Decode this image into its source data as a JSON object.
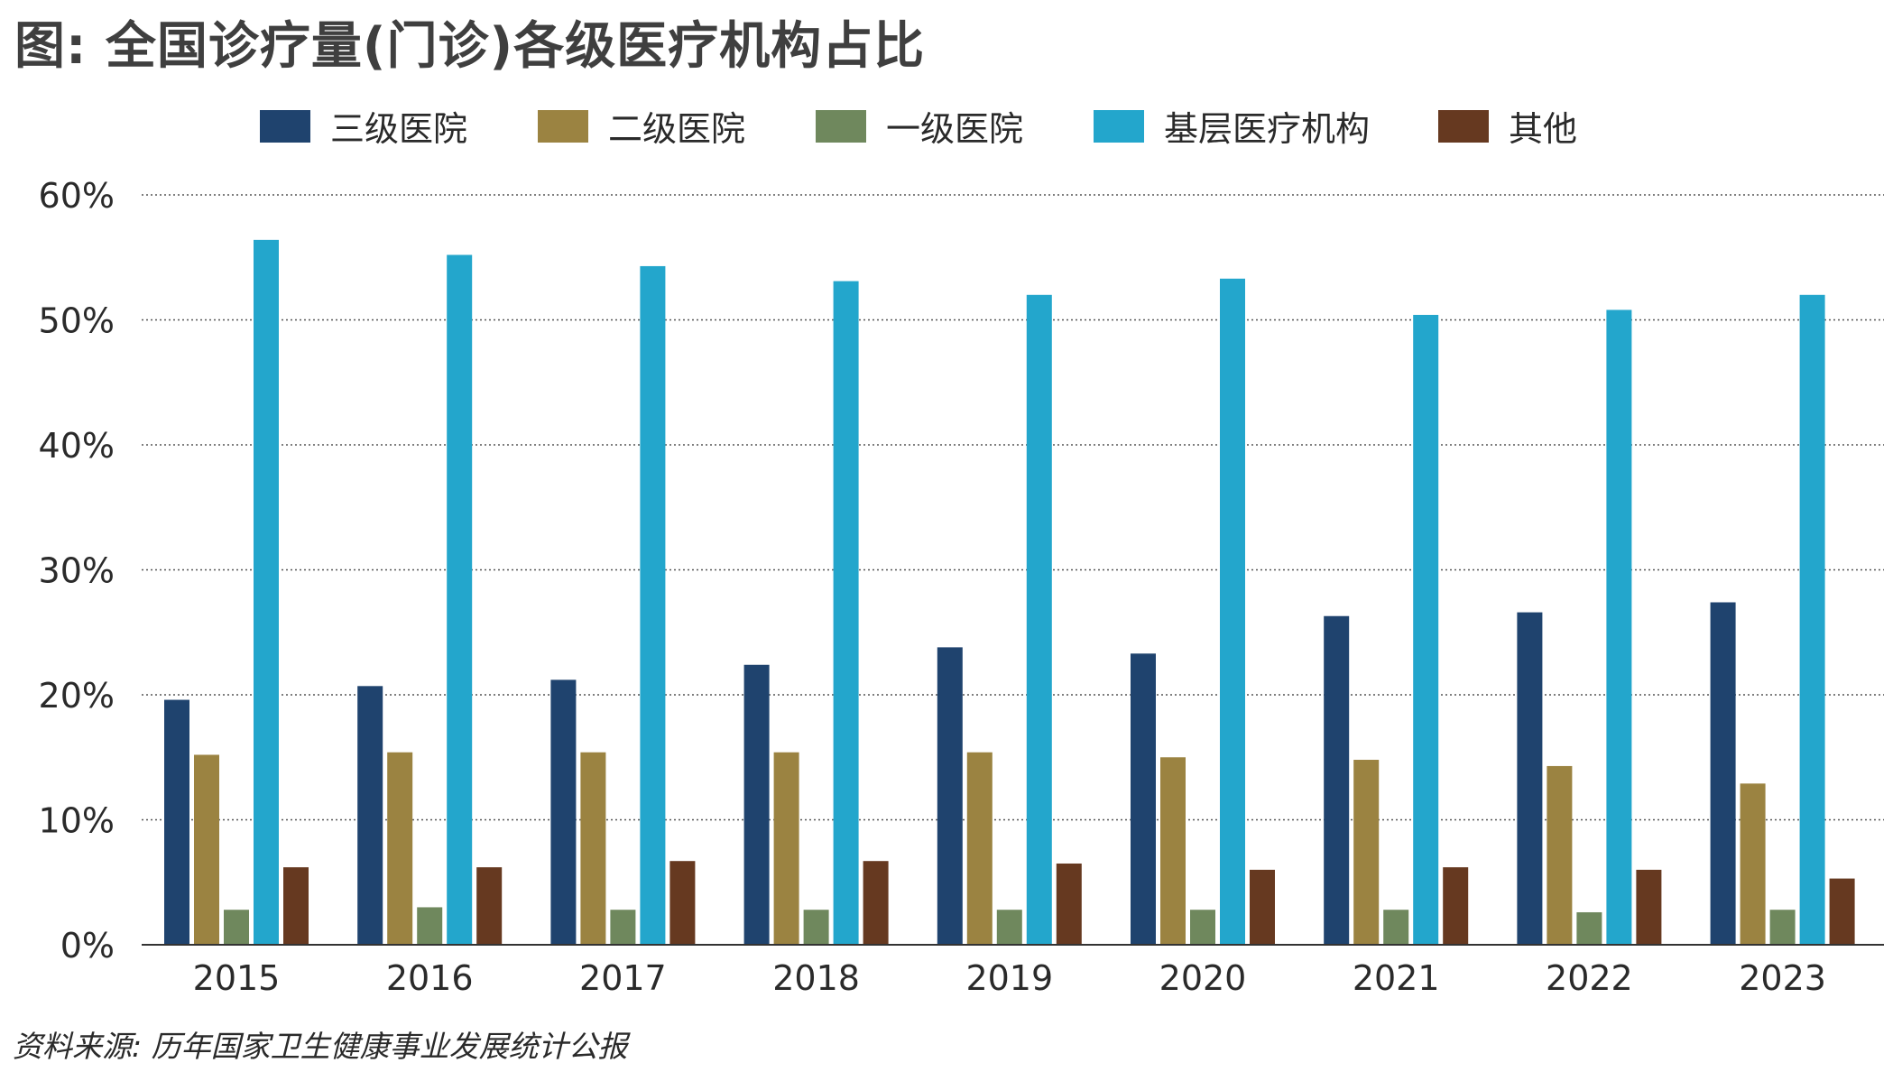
{
  "title": "图: 全国诊疗量(门诊)各级医疗机构占比",
  "source": "资料来源: 历年国家卫生健康事业发展统计公报",
  "chart_data": {
    "type": "bar",
    "title": "图: 全国诊疗量(门诊)各级医疗机构占比",
    "categories": [
      "2015",
      "2016",
      "2017",
      "2018",
      "2019",
      "2020",
      "2021",
      "2022",
      "2023"
    ],
    "ylim": [
      0,
      60
    ],
    "yticks": [
      0,
      10,
      20,
      30,
      40,
      50,
      60
    ],
    "ytick_labels": [
      "0%",
      "10%",
      "20%",
      "30%",
      "40%",
      "50%",
      "60%"
    ],
    "grid": "horizontal dotted",
    "legend_position": "top",
    "series": [
      {
        "name": "三级医院",
        "color": "#1f436e",
        "values": [
          19.6,
          20.7,
          21.2,
          22.4,
          23.8,
          23.3,
          26.3,
          26.6,
          27.4
        ]
      },
      {
        "name": "二级医院",
        "color": "#9b8341",
        "values": [
          15.2,
          15.4,
          15.4,
          15.4,
          15.4,
          15.0,
          14.8,
          14.3,
          12.9
        ]
      },
      {
        "name": "一级医院",
        "color": "#6f885d",
        "values": [
          2.8,
          3.0,
          2.8,
          2.8,
          2.8,
          2.8,
          2.8,
          2.6,
          2.8
        ]
      },
      {
        "name": "基层医疗机构",
        "color": "#23a6cc",
        "values": [
          56.4,
          55.2,
          54.3,
          53.1,
          52.0,
          53.3,
          50.4,
          50.8,
          52.0
        ]
      },
      {
        "name": "其他",
        "color": "#663920",
        "values": [
          6.2,
          6.2,
          6.7,
          6.7,
          6.5,
          6.0,
          6.2,
          6.0,
          5.3
        ]
      }
    ]
  }
}
